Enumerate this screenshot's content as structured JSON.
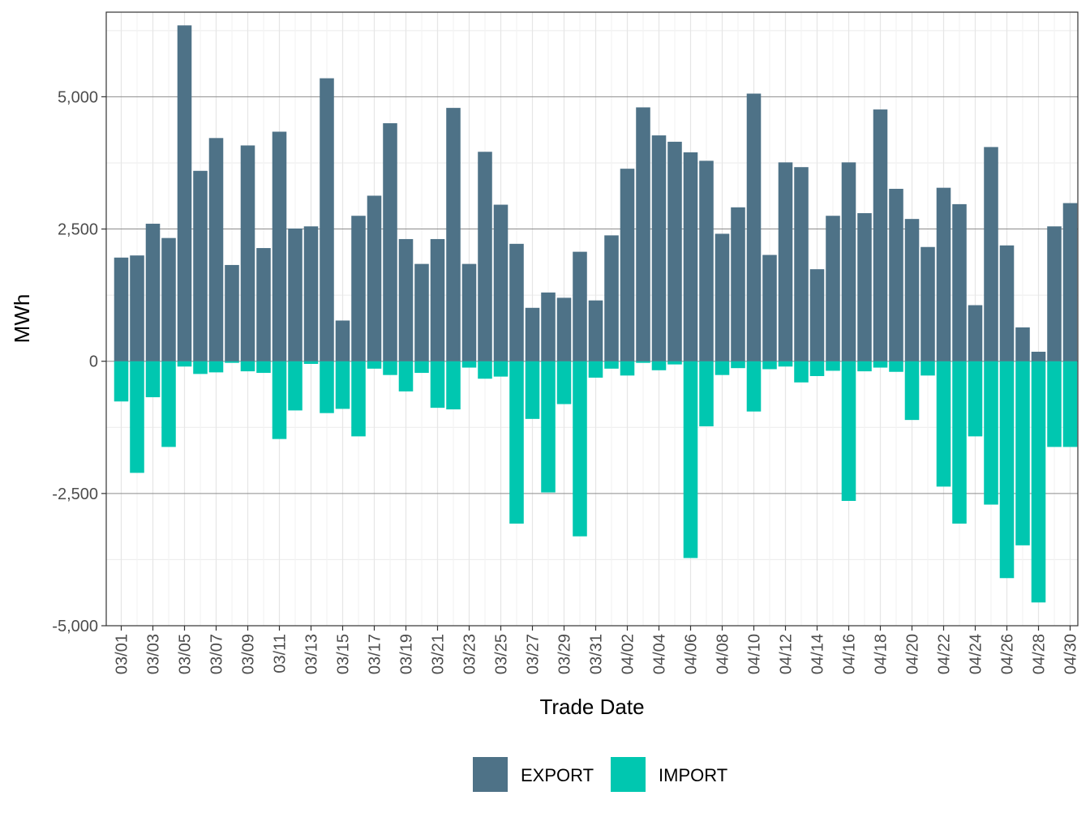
{
  "chart_data": {
    "type": "bar",
    "stacked": "diverging",
    "title": "",
    "xlabel": "Trade Date",
    "ylabel": "MWh",
    "ylim": [
      -5000,
      6600
    ],
    "yticks": [
      -5000,
      -2500,
      0,
      2500,
      5000
    ],
    "ytick_labels": [
      "-5,000",
      "-2,500",
      "0",
      "2,500",
      "5,000"
    ],
    "grid": true,
    "legend_position": "bottom",
    "categories": [
      "03/01",
      "03/02",
      "03/03",
      "03/04",
      "03/05",
      "03/06",
      "03/07",
      "03/08",
      "03/09",
      "03/10",
      "03/11",
      "03/12",
      "03/13",
      "03/14",
      "03/15",
      "03/16",
      "03/17",
      "03/18",
      "03/19",
      "03/20",
      "03/21",
      "03/22",
      "03/23",
      "03/24",
      "03/25",
      "03/26",
      "03/27",
      "03/28",
      "03/29",
      "03/30",
      "03/31",
      "04/01",
      "04/02",
      "04/03",
      "04/04",
      "04/05",
      "04/06",
      "04/07",
      "04/08",
      "04/09",
      "04/10",
      "04/11",
      "04/12",
      "04/13",
      "04/14",
      "04/15",
      "04/16",
      "04/17",
      "04/18",
      "04/19",
      "04/20",
      "04/21",
      "04/22",
      "04/23",
      "04/24",
      "04/25",
      "04/26",
      "04/27",
      "04/28",
      "04/29",
      "04/30"
    ],
    "xtick_labels": [
      "03/01",
      "03/03",
      "03/05",
      "03/07",
      "03/09",
      "03/11",
      "03/13",
      "03/15",
      "03/17",
      "03/19",
      "03/21",
      "03/23",
      "03/25",
      "03/27",
      "03/29",
      "03/31",
      "04/02",
      "04/04",
      "04/06",
      "04/08",
      "04/10",
      "04/12",
      "04/14",
      "04/16",
      "04/18",
      "04/20",
      "04/22",
      "04/24",
      "04/26",
      "04/28",
      "04/30"
    ],
    "series": [
      {
        "name": "EXPORT",
        "color": "#4e7287",
        "values": [
          1960,
          2000,
          2600,
          2330,
          6350,
          3600,
          4220,
          1820,
          4080,
          2140,
          4340,
          2510,
          2550,
          5350,
          770,
          2750,
          3130,
          4500,
          2310,
          1840,
          2310,
          4790,
          1840,
          3960,
          2960,
          2220,
          1010,
          1300,
          1200,
          2070,
          1150,
          2380,
          3640,
          4800,
          4270,
          4150,
          3950,
          3790,
          2410,
          2910,
          5060,
          2010,
          3760,
          3670,
          1740,
          2750,
          3760,
          2800,
          4760,
          3260,
          2690,
          2160,
          3280,
          2970,
          1060,
          4050,
          2190,
          640,
          180,
          2550,
          2990
        ]
      },
      {
        "name": "IMPORT",
        "color": "#00c7b0",
        "values": [
          -760,
          -2110,
          -680,
          -1620,
          -100,
          -240,
          -210,
          -30,
          -190,
          -220,
          -1470,
          -930,
          -50,
          -980,
          -900,
          -1420,
          -140,
          -260,
          -570,
          -220,
          -880,
          -910,
          -120,
          -330,
          -290,
          -3070,
          -1090,
          -2480,
          -810,
          -3310,
          -310,
          -140,
          -270,
          -30,
          -170,
          -60,
          -3720,
          -1230,
          -260,
          -130,
          -950,
          -150,
          -100,
          -400,
          -280,
          -180,
          -2640,
          -190,
          -120,
          -200,
          -1110,
          -270,
          -2370,
          -3070,
          -1420,
          -2710,
          -4100,
          -3480,
          -4560,
          -1620,
          -1620
        ]
      }
    ]
  }
}
